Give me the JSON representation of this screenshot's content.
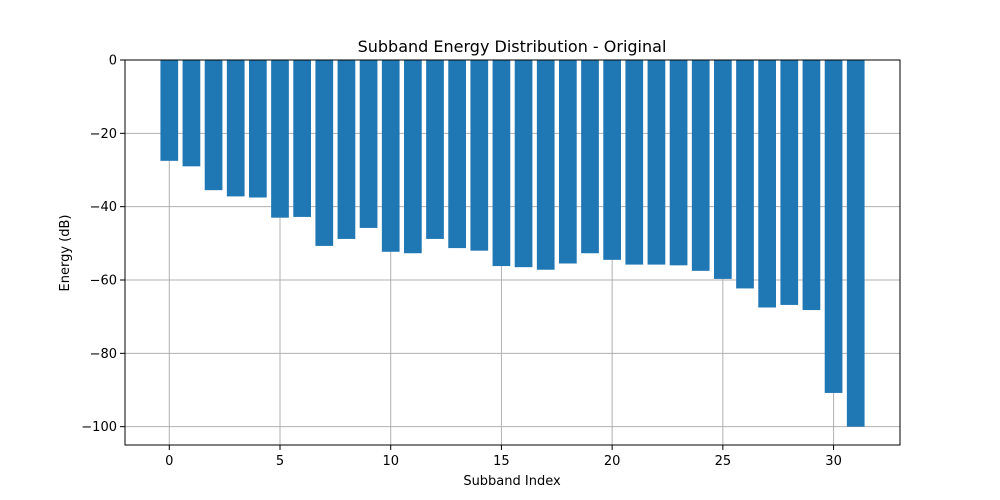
{
  "chart_data": {
    "type": "bar",
    "title": "Subband Energy Distribution - Original",
    "xlabel": "Subband Index",
    "ylabel": "Energy (dB)",
    "x": [
      0,
      1,
      2,
      3,
      4,
      5,
      6,
      7,
      8,
      9,
      10,
      11,
      12,
      13,
      14,
      15,
      16,
      17,
      18,
      19,
      20,
      21,
      22,
      23,
      24,
      25,
      26,
      27,
      28,
      29,
      30,
      31
    ],
    "values": [
      -27.5,
      -29.0,
      -35.5,
      -37.2,
      -37.5,
      -43.0,
      -42.8,
      -50.7,
      -48.8,
      -45.8,
      -52.3,
      -52.7,
      -48.8,
      -51.3,
      -52.0,
      -56.2,
      -56.5,
      -57.2,
      -55.5,
      -52.7,
      -54.5,
      -55.8,
      -55.8,
      -56.0,
      -57.5,
      -59.7,
      -62.3,
      -67.5,
      -66.8,
      -68.2,
      -90.8,
      -100.0
    ],
    "xlim": [
      -2,
      33
    ],
    "ylim": [
      -105,
      0
    ],
    "xticks": [
      0,
      5,
      10,
      15,
      20,
      25,
      30
    ],
    "yticks": [
      0,
      -20,
      -40,
      -60,
      -80,
      -100
    ],
    "xtick_labels": [
      "0",
      "5",
      "10",
      "15",
      "20",
      "25",
      "30"
    ],
    "ytick_labels": [
      "0",
      "−20",
      "−40",
      "−60",
      "−80",
      "−100"
    ],
    "grid": true,
    "bar_color": "#1f77b4",
    "grid_color": "#b0b0b0"
  }
}
